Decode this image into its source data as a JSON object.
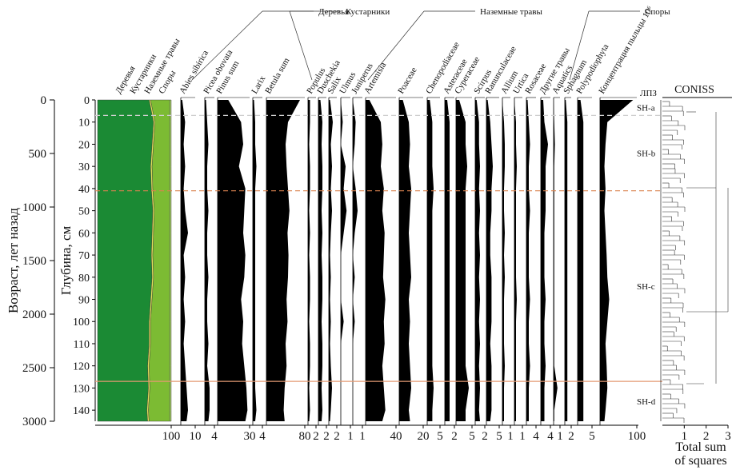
{
  "chart_data": {
    "type": "pollen",
    "y_title": "Возраст, лет назад",
    "y2_title": "Глубина, см",
    "ylim": [
      0,
      3000
    ],
    "yticks": [
      0,
      500,
      1000,
      1500,
      2000,
      2500,
      3000
    ],
    "y2lim": [
      0,
      145
    ],
    "y2ticks": [
      0,
      10,
      20,
      30,
      40,
      50,
      60,
      70,
      80,
      90,
      100,
      110,
      120,
      130,
      140
    ],
    "depths": [
      0,
      10,
      20,
      30,
      40,
      50,
      60,
      70,
      80,
      90,
      100,
      110,
      120,
      130,
      140,
      145
    ],
    "group_headings": [
      "Деревья",
      "Кустарники",
      "Наземные травы",
      "Споры"
    ],
    "groups": {
      "xlim": [
        0,
        100
      ],
      "xticks": [
        100
      ],
      "series": [
        {
          "name": "Деревья",
          "color": "#1b8a34",
          "values": [
            70,
            76,
            74,
            72,
            73,
            75,
            74,
            73,
            74,
            72,
            70,
            70,
            68,
            69,
            67,
            68
          ]
        },
        {
          "name": "Кустарники",
          "color": "#e2dc5a",
          "values": [
            2,
            2,
            2,
            2,
            2,
            2,
            2,
            2,
            2,
            2,
            2,
            2,
            2,
            2,
            2,
            2
          ]
        },
        {
          "name": "Наземные травы",
          "color": "#7cbb33",
          "values": [
            26,
            20,
            22,
            24,
            23,
            21,
            22,
            23,
            22,
            24,
            26,
            26,
            28,
            27,
            29,
            28
          ]
        },
        {
          "name": "Споры",
          "color": "#a9d46a",
          "values": [
            2,
            2,
            2,
            2,
            2,
            2,
            2,
            2,
            2,
            2,
            2,
            2,
            2,
            2,
            2,
            2
          ]
        }
      ]
    },
    "taxa": [
      {
        "name": "Abies sibirica",
        "xlim": [
          0,
          10
        ],
        "xticks": [
          10
        ],
        "values": [
          1,
          3,
          2,
          3,
          2,
          3,
          5,
          2,
          3,
          2,
          3,
          2,
          3,
          4,
          5,
          4
        ]
      },
      {
        "name": "Picea obovata",
        "xlim": [
          0,
          4
        ],
        "xticks": [
          4
        ],
        "values": [
          0.5,
          1,
          1.5,
          1,
          1,
          1.5,
          1,
          1,
          1.5,
          1,
          1,
          1.5,
          1,
          2,
          2,
          1.5
        ]
      },
      {
        "name": "Pinus sum",
        "xlim": [
          0,
          30
        ],
        "xticks": [
          30
        ],
        "values": [
          10,
          22,
          24,
          20,
          26,
          25,
          24,
          26,
          25,
          22,
          24,
          23,
          25,
          27,
          28,
          26
        ]
      },
      {
        "name": "Larix",
        "xlim": [
          0,
          4
        ],
        "xticks": [
          4
        ],
        "values": [
          0.5,
          1,
          1,
          1.5,
          1,
          1,
          1,
          1,
          1,
          1,
          1,
          1,
          1,
          1,
          1.5,
          1
        ]
      },
      {
        "name": "Betula sum",
        "xlim": [
          0,
          80
        ],
        "xticks": [
          80
        ],
        "values": [
          70,
          45,
          40,
          42,
          45,
          48,
          44,
          46,
          45,
          42,
          44,
          40,
          42,
          38,
          36,
          38
        ]
      },
      {
        "name": "Populus",
        "xlim": [
          0,
          2
        ],
        "xticks": [
          2
        ],
        "values": [
          0.5,
          0.5,
          0.3,
          0.5,
          0.5,
          0.3,
          0.5,
          0.3,
          0.5,
          0.5,
          0.3,
          0.5,
          0.5,
          0.3,
          0.5,
          0.3
        ]
      },
      {
        "name": "Duschekia",
        "xlim": [
          0,
          2
        ],
        "xticks": [
          2
        ],
        "values": [
          0.5,
          1,
          0.8,
          1,
          1,
          0.8,
          1,
          0.8,
          1,
          1,
          0.8,
          1,
          1,
          0.8,
          1,
          0.8
        ]
      },
      {
        "name": "Salix",
        "xlim": [
          0,
          2
        ],
        "xticks": [
          2
        ],
        "values": [
          0.3,
          1,
          0.5,
          0.8,
          0.5,
          0.8,
          0.5,
          0.3,
          0.5,
          0.3,
          0.5,
          0.3,
          0.5,
          0.8,
          0.5,
          0.3
        ]
      },
      {
        "name": "Ulmus",
        "xlim": [
          0,
          1
        ],
        "xticks": [
          1
        ],
        "values": [
          0,
          0.2,
          0,
          0.5,
          0.3,
          0.6,
          0.3,
          0,
          0,
          0,
          0.3,
          0,
          0,
          0,
          0,
          0
        ]
      },
      {
        "name": "Juniperus",
        "xlim": [
          0,
          1
        ],
        "xticks": [
          1
        ],
        "values": [
          0,
          0.3,
          0.2,
          0,
          0.3,
          0.5,
          0.2,
          0,
          0.2,
          0,
          0.2,
          0,
          0,
          0,
          0,
          0
        ]
      },
      {
        "name": "Artemisia",
        "xlim": [
          0,
          40
        ],
        "xticks": [
          40
        ],
        "values": [
          5,
          20,
          22,
          20,
          24,
          22,
          25,
          24,
          23,
          26,
          24,
          25,
          22,
          24,
          26,
          22
        ]
      },
      {
        "name": "Poaceae",
        "xlim": [
          0,
          20
        ],
        "xticks": [
          20
        ],
        "values": [
          3,
          8,
          9,
          8,
          10,
          9,
          8,
          9,
          10,
          8,
          9,
          8,
          9,
          10,
          8,
          9
        ]
      },
      {
        "name": "Chenopodiaceae",
        "xlim": [
          0,
          5
        ],
        "xticks": [
          5
        ],
        "values": [
          1,
          2,
          2,
          2,
          2.5,
          2,
          2,
          2,
          2,
          2,
          2,
          2,
          2,
          2.5,
          2,
          2
        ]
      },
      {
        "name": "Asteraceae",
        "xlim": [
          0,
          2
        ],
        "xticks": [
          2
        ],
        "values": [
          0.5,
          1,
          1,
          1,
          1,
          1,
          1,
          1,
          1,
          1,
          1,
          1,
          1,
          1,
          1,
          1
        ]
      },
      {
        "name": "Cyperaceae",
        "xlim": [
          0,
          5
        ],
        "xticks": [
          5
        ],
        "values": [
          1,
          3,
          3,
          3.5,
          3,
          3,
          3,
          3,
          3,
          3,
          3,
          3,
          3,
          4,
          3,
          3
        ]
      },
      {
        "name": "Scirpus",
        "xlim": [
          0,
          2
        ],
        "xticks": [
          2
        ],
        "values": [
          0.3,
          0.8,
          0.8,
          1,
          0.8,
          1,
          0.8,
          1,
          0.8,
          1,
          0.8,
          1,
          0.8,
          1,
          0.8,
          1
        ]
      },
      {
        "name": "Ranunculaceae",
        "xlim": [
          0,
          5
        ],
        "xticks": [
          5
        ],
        "values": [
          0.5,
          1.5,
          2,
          2.5,
          2,
          2,
          1.5,
          1.5,
          2,
          2,
          2,
          1.5,
          2,
          2,
          2,
          1.5
        ]
      },
      {
        "name": "Allium",
        "xlim": [
          0,
          1
        ],
        "xticks": [
          1
        ],
        "values": [
          0,
          0.2,
          0.3,
          0.3,
          0.2,
          0.2,
          0.3,
          0.2,
          0.3,
          0.2,
          0.2,
          0.2,
          0.3,
          0.2,
          0.2,
          0.2
        ]
      },
      {
        "name": "Urtica",
        "xlim": [
          0,
          1
        ],
        "xticks": [
          1
        ],
        "values": [
          0,
          0.2,
          0.2,
          0.3,
          0.2,
          0.2,
          0.2,
          0.2,
          0.2,
          0.3,
          0.2,
          0.2,
          0.2,
          0.2,
          0.2,
          0.2
        ]
      },
      {
        "name": "Rosaceae",
        "xlim": [
          0,
          4
        ],
        "xticks": [
          4
        ],
        "values": [
          0.5,
          1,
          1.5,
          1,
          1,
          1.5,
          1,
          1,
          1,
          1.5,
          1,
          1,
          1.5,
          1,
          1,
          1
        ]
      },
      {
        "name": "Другие травы",
        "xlim": [
          0,
          4
        ],
        "xticks": [
          4
        ],
        "values": [
          1,
          1.5,
          3,
          2,
          2,
          2,
          1.5,
          1.5,
          1.5,
          2,
          1.5,
          1.5,
          2,
          1.5,
          1.5,
          1.5
        ]
      },
      {
        "name": "Aquatics",
        "xlim": [
          0,
          1
        ],
        "xticks": [
          1
        ],
        "values": [
          0,
          0.1,
          0.2,
          0.1,
          0.1,
          0.1,
          0.1,
          0.1,
          0.1,
          0.1,
          0.1,
          0.1,
          0.1,
          0.6,
          0.1,
          0.1
        ]
      },
      {
        "name": "Sphagnum",
        "xlim": [
          0,
          2
        ],
        "xticks": [
          2
        ],
        "values": [
          0.3,
          0.8,
          0.8,
          0.8,
          0.8,
          0.8,
          0.8,
          0.8,
          0.8,
          0.8,
          0.8,
          0.8,
          0.8,
          0.8,
          0.8,
          0.8
        ]
      },
      {
        "name": "Polypodiophyta",
        "xlim": [
          0,
          5
        ],
        "xticks": [
          5
        ],
        "values": [
          1,
          2,
          2,
          2,
          2,
          2,
          2,
          2,
          2,
          2,
          2,
          2,
          2,
          2,
          2,
          2
        ]
      },
      {
        "name": "Концентрация пыльцы 10⁶",
        "xlim": [
          0,
          100
        ],
        "xticks": [
          100
        ],
        "values": [
          90,
          20,
          15,
          12,
          15,
          12,
          15,
          18,
          20,
          25,
          20,
          15,
          18,
          20,
          15,
          12
        ]
      }
    ],
    "zones_title": "ЛПЗ",
    "zones": [
      {
        "label": "SH-a",
        "top": 0,
        "bottom": 7
      },
      {
        "label": "SH-b",
        "top": 7,
        "bottom": 41
      },
      {
        "label": "SH-c",
        "top": 41,
        "bottom": 127
      },
      {
        "label": "SH-d",
        "top": 127,
        "bottom": 145
      }
    ],
    "boundaries": [
      {
        "depth": 7,
        "color": "#cfcfcf",
        "dashed": true
      },
      {
        "depth": 41,
        "color": "#d9824f",
        "dashed": true
      },
      {
        "depth": 127,
        "color": "#e39a72",
        "dashed": false
      }
    ],
    "coniss": {
      "title": "CONISS",
      "xlim": [
        0,
        3
      ],
      "xticks": [
        1,
        2,
        3
      ],
      "xlabel": [
        "Total sum",
        "of squares"
      ]
    }
  }
}
